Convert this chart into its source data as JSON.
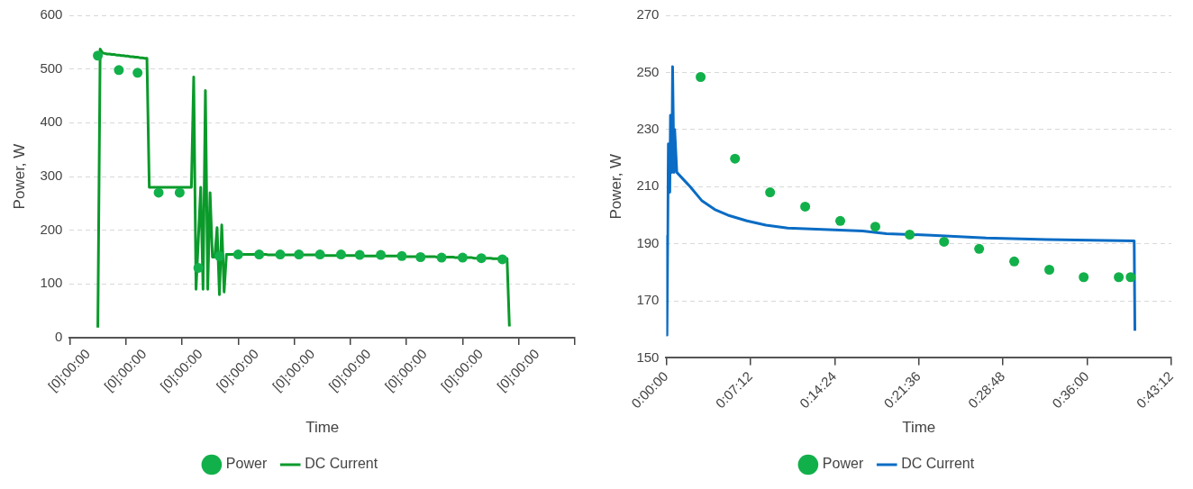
{
  "chart_data": [
    {
      "type": "line",
      "xlabel": "Time",
      "ylabel": "Power, W",
      "ylim": [
        0,
        600
      ],
      "yticks": [
        0,
        100,
        200,
        300,
        400,
        500,
        600
      ],
      "categories": [
        "[0]:00:00",
        null,
        null,
        null,
        null,
        null,
        null,
        null,
        null,
        null,
        null,
        null,
        null,
        null,
        null,
        null,
        null,
        null,
        null,
        null,
        null,
        null,
        null,
        null,
        "[0]:00:00",
        null,
        null,
        null,
        null,
        null,
        null,
        null,
        null,
        null,
        null,
        null,
        null,
        null,
        null,
        null,
        null,
        null,
        null,
        null,
        null,
        null,
        null,
        null,
        "[0]:00:00",
        null,
        null,
        null,
        null,
        null,
        null,
        null,
        null,
        null,
        null,
        null,
        null,
        null,
        null,
        null,
        null,
        null,
        null,
        null,
        null,
        null,
        null,
        null,
        "[0]:00:00",
        null,
        null,
        null,
        null,
        null,
        null,
        null,
        null,
        null,
        null,
        null,
        null,
        null,
        null,
        null,
        null,
        null,
        null,
        null,
        null,
        null,
        null,
        null,
        "[0]:00:00",
        null,
        null,
        null,
        null,
        null,
        null,
        null,
        null,
        null,
        null,
        null,
        null,
        null,
        null,
        null,
        null,
        null,
        null,
        null,
        null,
        null,
        null,
        null,
        "[0]:00:00",
        null,
        null,
        null,
        null,
        null,
        null,
        null,
        null,
        null,
        null,
        null,
        null,
        null,
        null,
        null,
        null,
        null,
        null,
        null,
        null,
        null,
        null,
        null,
        "[0]:00:00",
        null,
        null,
        null,
        null,
        null,
        null,
        null,
        null,
        null,
        null,
        null,
        null,
        null,
        null,
        null,
        null,
        null,
        null,
        null,
        null,
        null,
        null,
        null,
        "[0]:00:00",
        null,
        null,
        null,
        null,
        null,
        null,
        null,
        null,
        null,
        null,
        null,
        null,
        null,
        null,
        null,
        null,
        null,
        null,
        null,
        null,
        null,
        null,
        null,
        "[0]:00:00",
        null,
        null,
        null,
        null,
        null,
        null,
        null,
        null,
        null,
        null,
        null,
        null,
        null,
        null,
        null,
        null,
        null,
        null,
        null,
        null,
        null,
        null,
        null,
        null
      ],
      "grid": "y",
      "legend": "bottom",
      "series": [
        {
          "name": "Power",
          "type": "scatter",
          "marker": "circle",
          "color": "#12b04a",
          "values": [
            null,
            null,
            null,
            null,
            null,
            null,
            null,
            null,
            null,
            null,
            null,
            null,
            525,
            null,
            null,
            null,
            null,
            null,
            null,
            null,
            null,
            498,
            null,
            null,
            null,
            null,
            null,
            null,
            null,
            493,
            null,
            null,
            null,
            null,
            null,
            null,
            null,
            null,
            270,
            null,
            null,
            null,
            null,
            null,
            null,
            null,
            null,
            270,
            null,
            null,
            null,
            null,
            null,
            null,
            null,
            130,
            null,
            null,
            null,
            null,
            null,
            null,
            null,
            null,
            152,
            null,
            null,
            null,
            null,
            null,
            null,
            null,
            155,
            null,
            null,
            null,
            null,
            null,
            null,
            null,
            null,
            155,
            null,
            null,
            null,
            null,
            null,
            null,
            null,
            null,
            155,
            null,
            null,
            null,
            null,
            null,
            null,
            null,
            155,
            null,
            null,
            null,
            null,
            null,
            null,
            null,
            null,
            155,
            null,
            null,
            null,
            null,
            null,
            null,
            null,
            null,
            155,
            null,
            null,
            null,
            null,
            null,
            null,
            null,
            154,
            null,
            null,
            null,
            null,
            null,
            null,
            null,
            null,
            154,
            null,
            null,
            null,
            null,
            null,
            null,
            null,
            null,
            152,
            null,
            null,
            null,
            null,
            null,
            null,
            null,
            150,
            null,
            null,
            null,
            null,
            null,
            null,
            null,
            null,
            149,
            null,
            null,
            null,
            null,
            null,
            null,
            null,
            null,
            149,
            null,
            null,
            null,
            null,
            null,
            null,
            null,
            148,
            null,
            null,
            null,
            null,
            null,
            null,
            null,
            null,
            146,
            null,
            null,
            null,
            null,
            null,
            null,
            null,
            null,
            null,
            null,
            null,
            null,
            null,
            null,
            null,
            null,
            null,
            null,
            null,
            null,
            null,
            null,
            null,
            null,
            null,
            null,
            null,
            null,
            null,
            null,
            null
          ]
        },
        {
          "name": "DC Current",
          "type": "line",
          "marker": "none",
          "line_style": "solid",
          "color": "#0a9a2a",
          "values": [
            null,
            null,
            null,
            null,
            null,
            null,
            null,
            null,
            null,
            null,
            null,
            null,
            19,
            537,
            530,
            529,
            528,
            528,
            527,
            527,
            526,
            526,
            525,
            525,
            524,
            524,
            523,
            523,
            522,
            522,
            521,
            521,
            520,
            520,
            280,
            280,
            280,
            280,
            280,
            280,
            280,
            280,
            280,
            280,
            280,
            280,
            280,
            280,
            280,
            280,
            280,
            280,
            280,
            485,
            90,
            185,
            280,
            90,
            460,
            90,
            270,
            150,
            150,
            205,
            80,
            210,
            85,
            155,
            155,
            155,
            155,
            155,
            155,
            155,
            155,
            155,
            155,
            155,
            155,
            155,
            155,
            155,
            155,
            155,
            155,
            154,
            154,
            154,
            154,
            154,
            154,
            154,
            154,
            154,
            154,
            154,
            154,
            154,
            154,
            154,
            154,
            154,
            154,
            154,
            154,
            154,
            154,
            154,
            154,
            153,
            153,
            153,
            153,
            153,
            153,
            153,
            153,
            153,
            153,
            153,
            153,
            153,
            153,
            153,
            153,
            152,
            152,
            152,
            152,
            152,
            152,
            152,
            152,
            152,
            152,
            152,
            152,
            152,
            152,
            152,
            152,
            151,
            151,
            151,
            151,
            151,
            151,
            151,
            151,
            151,
            151,
            151,
            151,
            151,
            151,
            151,
            151,
            150,
            150,
            150,
            150,
            150,
            150,
            150,
            150,
            149,
            149,
            149,
            149,
            149,
            149,
            149,
            149,
            148,
            148,
            148,
            148,
            148,
            148,
            148,
            148,
            147,
            147,
            147,
            147,
            147,
            147,
            147,
            21,
            null,
            null,
            null,
            null,
            null,
            null,
            null,
            null,
            null,
            null,
            null,
            null,
            null,
            null,
            null,
            null,
            null,
            null,
            null,
            null,
            null,
            null,
            null,
            null,
            null,
            null,
            null,
            null
          ]
        }
      ]
    },
    {
      "type": "line",
      "xlabel": "Time",
      "ylabel": "Power, W",
      "xlim": [
        0,
        0.72
      ],
      "ylim": [
        150,
        270
      ],
      "yticks": [
        150,
        170,
        190,
        210,
        230,
        250,
        270
      ],
      "xticks": [
        {
          "value": 0,
          "label": "0:00:00"
        },
        {
          "value": 0.12,
          "label": "0:07:12"
        },
        {
          "value": 0.24,
          "label": "0:14:24"
        },
        {
          "value": 0.36,
          "label": "0:21:36"
        },
        {
          "value": 0.48,
          "label": "0:28:48"
        },
        {
          "value": 0.6,
          "label": "0:36:00"
        },
        {
          "value": 0.72,
          "label": "0:43:12"
        }
      ],
      "grid": "y",
      "legend": "bottom",
      "series": [
        {
          "name": "Power",
          "type": "scatter",
          "marker": "circle",
          "color": "#12b04a",
          "x": [
            0.049,
            0.098,
            0.148,
            0.198,
            0.248,
            0.298,
            0.347,
            0.396,
            0.446,
            0.496,
            0.546,
            0.595,
            0.645,
            0.662
          ],
          "values": [
            248.4,
            219.8,
            208,
            203,
            198,
            196,
            193.2,
            190.7,
            188.2,
            183.8,
            180.9,
            178.3,
            178.3,
            178.3
          ]
        },
        {
          "name": "DC Current",
          "type": "line",
          "marker": "none",
          "line_style": "solid",
          "color": "#0a6cc4",
          "x": [
            0,
            0.001,
            0.003,
            0.005,
            0.006,
            0.008,
            0.009,
            0.011,
            0.012,
            0.015,
            0.034,
            0.051,
            0.069,
            0.088,
            0.115,
            0.142,
            0.173,
            0.223,
            0.28,
            0.314,
            0.378,
            0.456,
            0.543,
            0.667,
            0.668
          ],
          "values": [
            193,
            158,
            225,
            208,
            235,
            215,
            252,
            215,
            230,
            215,
            210,
            205,
            202,
            200,
            198,
            196.5,
            195.5,
            195,
            194.5,
            193.5,
            193,
            192,
            191.5,
            191,
            159.5
          ]
        }
      ]
    }
  ]
}
